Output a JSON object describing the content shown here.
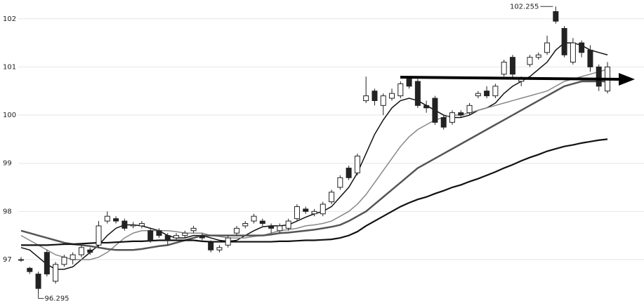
{
  "chart_data": {
    "type": "candlestick",
    "ylim": [
      96.14,
      102.39
    ],
    "yticks": [
      97,
      98,
      99,
      100,
      101,
      102
    ],
    "grid": true,
    "up_color": "#ffffff",
    "down_color": "#222222",
    "candles": {
      "open": [
        97.0,
        96.82,
        96.7,
        97.15,
        96.55,
        96.9,
        97.0,
        97.1,
        97.2,
        97.3,
        97.8,
        97.85,
        97.8,
        97.7,
        97.7,
        97.6,
        97.6,
        97.5,
        97.45,
        97.5,
        97.6,
        97.5,
        97.35,
        97.2,
        97.3,
        97.55,
        97.7,
        97.8,
        97.8,
        97.7,
        97.6,
        97.65,
        97.85,
        98.05,
        97.95,
        97.95,
        98.2,
        98.5,
        98.9,
        98.8,
        100.3,
        100.5,
        100.2,
        100.35,
        100.4,
        100.75,
        100.7,
        100.2,
        100.35,
        99.95,
        99.85,
        100.05,
        100.05,
        100.4,
        100.5,
        100.4,
        100.85,
        101.2,
        100.7,
        101.05,
        101.2,
        101.3,
        102.15,
        101.8,
        101.1,
        101.5,
        101.35,
        101.0,
        100.5
      ],
      "high": [
        97.05,
        96.85,
        96.75,
        97.2,
        96.95,
        97.1,
        97.15,
        97.3,
        97.25,
        97.8,
        98.0,
        97.9,
        97.85,
        97.78,
        97.8,
        97.65,
        97.65,
        97.55,
        97.55,
        97.6,
        97.7,
        97.55,
        97.4,
        97.3,
        97.5,
        97.7,
        97.8,
        97.95,
        97.85,
        97.75,
        97.75,
        97.85,
        98.15,
        98.1,
        98.05,
        98.2,
        98.45,
        98.75,
        98.95,
        99.2,
        100.8,
        100.55,
        100.45,
        100.55,
        100.7,
        100.8,
        100.75,
        100.3,
        100.4,
        100.0,
        100.1,
        100.1,
        100.25,
        100.5,
        100.6,
        100.65,
        101.15,
        101.25,
        100.8,
        101.25,
        101.3,
        101.65,
        102.255,
        101.85,
        101.6,
        101.55,
        101.45,
        101.05,
        101.1
      ],
      "low": [
        96.95,
        96.7,
        96.295,
        96.65,
        96.5,
        96.85,
        96.9,
        97.05,
        97.1,
        97.25,
        97.75,
        97.75,
        97.6,
        97.65,
        97.65,
        97.35,
        97.45,
        97.3,
        97.4,
        97.45,
        97.55,
        97.4,
        97.15,
        97.15,
        97.25,
        97.5,
        97.65,
        97.75,
        97.7,
        97.55,
        97.55,
        97.6,
        97.8,
        97.95,
        97.9,
        97.9,
        98.15,
        98.45,
        98.65,
        98.75,
        100.25,
        100.2,
        100.0,
        100.3,
        100.35,
        100.55,
        100.15,
        100.05,
        99.8,
        99.7,
        99.8,
        99.95,
        100.0,
        100.35,
        100.35,
        100.35,
        100.8,
        100.75,
        100.6,
        101.0,
        101.15,
        101.25,
        101.9,
        101.2,
        101.05,
        101.2,
        100.9,
        100.5,
        100.45
      ],
      "close": [
        97.0,
        96.75,
        96.4,
        96.7,
        96.9,
        97.05,
        97.1,
        97.25,
        97.15,
        97.7,
        97.9,
        97.8,
        97.65,
        97.72,
        97.75,
        97.4,
        97.5,
        97.4,
        97.5,
        97.55,
        97.65,
        97.45,
        97.2,
        97.25,
        97.45,
        97.65,
        97.75,
        97.9,
        97.75,
        97.65,
        97.7,
        97.8,
        98.1,
        98.0,
        98.0,
        98.15,
        98.4,
        98.7,
        98.7,
        99.15,
        100.4,
        100.3,
        100.4,
        100.45,
        100.65,
        100.6,
        100.2,
        100.15,
        99.85,
        99.75,
        100.05,
        100.0,
        100.2,
        100.45,
        100.4,
        100.6,
        101.1,
        100.85,
        100.75,
        101.2,
        101.25,
        101.5,
        101.95,
        101.25,
        101.5,
        101.3,
        101.0,
        100.6,
        101.0
      ]
    },
    "series": [
      {
        "color": "#111111",
        "width": 1.5,
        "values": [
          97.25,
          97.2,
          97.05,
          96.9,
          96.8,
          96.8,
          96.85,
          97.0,
          97.15,
          97.3,
          97.5,
          97.65,
          97.72,
          97.72,
          97.7,
          97.65,
          97.6,
          97.5,
          97.45,
          97.45,
          97.5,
          97.5,
          97.45,
          97.4,
          97.38,
          97.4,
          97.5,
          97.6,
          97.68,
          97.7,
          97.7,
          97.72,
          97.8,
          97.88,
          97.95,
          98.0,
          98.1,
          98.3,
          98.5,
          98.8,
          99.2,
          99.6,
          99.9,
          100.15,
          100.3,
          100.35,
          100.3,
          100.2,
          100.1,
          100.0,
          99.95,
          99.95,
          100.0,
          100.1,
          100.15,
          100.25,
          100.45,
          100.6,
          100.7,
          100.8,
          100.95,
          101.1,
          101.35,
          101.5,
          101.5,
          101.45,
          101.35,
          101.3,
          101.25
        ]
      },
      {
        "color": "#888888",
        "width": 1.5,
        "values": [
          97.5,
          97.4,
          97.3,
          97.2,
          97.1,
          97.05,
          97.0,
          97.0,
          97.0,
          97.05,
          97.15,
          97.3,
          97.45,
          97.55,
          97.6,
          97.6,
          97.6,
          97.6,
          97.58,
          97.55,
          97.55,
          97.55,
          97.5,
          97.48,
          97.45,
          97.45,
          97.45,
          97.48,
          97.5,
          97.55,
          97.6,
          97.62,
          97.65,
          97.7,
          97.72,
          97.75,
          97.8,
          97.9,
          98.0,
          98.15,
          98.35,
          98.6,
          98.85,
          99.1,
          99.35,
          99.55,
          99.7,
          99.8,
          99.9,
          99.95,
          100.0,
          100.0,
          100.05,
          100.1,
          100.15,
          100.2,
          100.25,
          100.3,
          100.35,
          100.4,
          100.45,
          100.5,
          100.6,
          100.7,
          100.75,
          100.8,
          100.85,
          100.9,
          100.95
        ]
      },
      {
        "color": "#555555",
        "width": 2.5,
        "values": [
          97.6,
          97.55,
          97.5,
          97.45,
          97.4,
          97.35,
          97.32,
          97.3,
          97.28,
          97.25,
          97.22,
          97.2,
          97.2,
          97.2,
          97.22,
          97.25,
          97.28,
          97.3,
          97.35,
          97.4,
          97.45,
          97.5,
          97.5,
          97.5,
          97.5,
          97.5,
          97.5,
          97.5,
          97.5,
          97.52,
          97.55,
          97.56,
          97.58,
          97.6,
          97.62,
          97.65,
          97.68,
          97.72,
          97.8,
          97.9,
          98.0,
          98.15,
          98.3,
          98.45,
          98.6,
          98.75,
          98.9,
          99.0,
          99.1,
          99.2,
          99.3,
          99.4,
          99.5,
          99.6,
          99.7,
          99.8,
          99.9,
          100.0,
          100.1,
          100.2,
          100.3,
          100.4,
          100.5,
          100.6,
          100.65,
          100.7,
          100.7,
          100.7,
          100.7
        ]
      },
      {
        "color": "#111111",
        "width": 2.2,
        "values": [
          97.3,
          97.3,
          97.3,
          97.3,
          97.31,
          97.32,
          97.32,
          97.33,
          97.34,
          97.35,
          97.35,
          97.36,
          97.37,
          97.38,
          97.38,
          97.39,
          97.4,
          97.4,
          97.4,
          97.4,
          97.4,
          97.38,
          97.37,
          97.37,
          97.37,
          97.37,
          97.37,
          97.37,
          97.37,
          97.37,
          97.38,
          97.38,
          97.39,
          97.4,
          97.4,
          97.41,
          97.42,
          97.45,
          97.5,
          97.58,
          97.7,
          97.8,
          97.9,
          98.0,
          98.1,
          98.18,
          98.25,
          98.3,
          98.37,
          98.43,
          98.5,
          98.55,
          98.62,
          98.68,
          98.75,
          98.82,
          98.9,
          98.97,
          99.05,
          99.12,
          99.18,
          99.25,
          99.3,
          99.35,
          99.38,
          99.42,
          99.45,
          99.48,
          99.5
        ]
      }
    ],
    "annotations": [
      {
        "value": 102.255,
        "label": "102.255"
      },
      {
        "value": 96.295,
        "label": "96.295"
      }
    ]
  }
}
